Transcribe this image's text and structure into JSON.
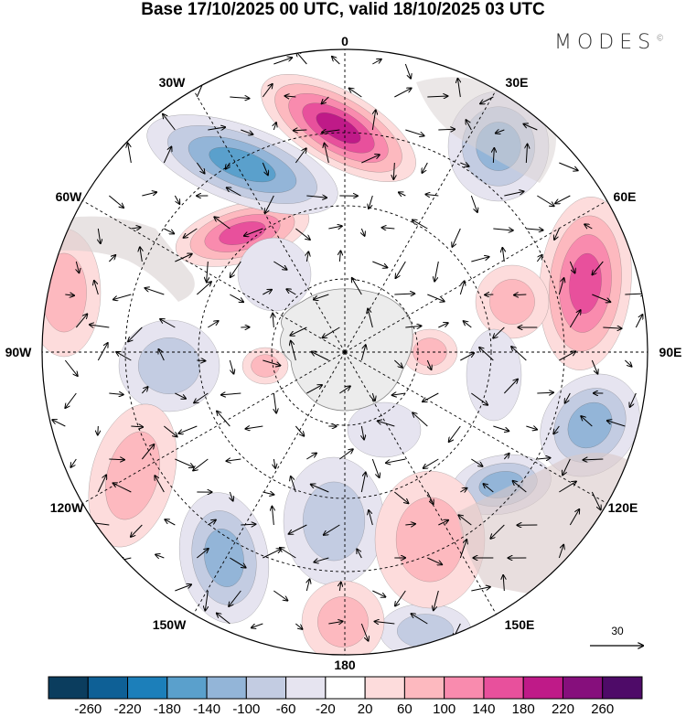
{
  "title": "Base 17/10/2025 00 UTC, valid 18/10/2025 03 UTC",
  "logo": "MODES",
  "logo_mark": "©",
  "longitude_labels": [
    "0",
    "30E",
    "60E",
    "90E",
    "120E",
    "150E",
    "180",
    "150W",
    "120W",
    "90W",
    "60W",
    "30W"
  ],
  "vector_scale": {
    "label": "30"
  },
  "colorbar": {
    "labels": [
      "-260",
      "-220",
      "-180",
      "-140",
      "-100",
      "-60",
      "-20",
      "20",
      "60",
      "100",
      "140",
      "180",
      "220",
      "260"
    ],
    "colors": [
      "#0b3d5e",
      "#0e6096",
      "#1c7fba",
      "#5aa0cc",
      "#93b5d8",
      "#c3cce2",
      "#e6e4f0",
      "#ffffff",
      "#fddcdc",
      "#fdb9bf",
      "#f98bae",
      "#e8509c",
      "#bf1a88",
      "#860f7c",
      "#4e0b68"
    ]
  }
}
